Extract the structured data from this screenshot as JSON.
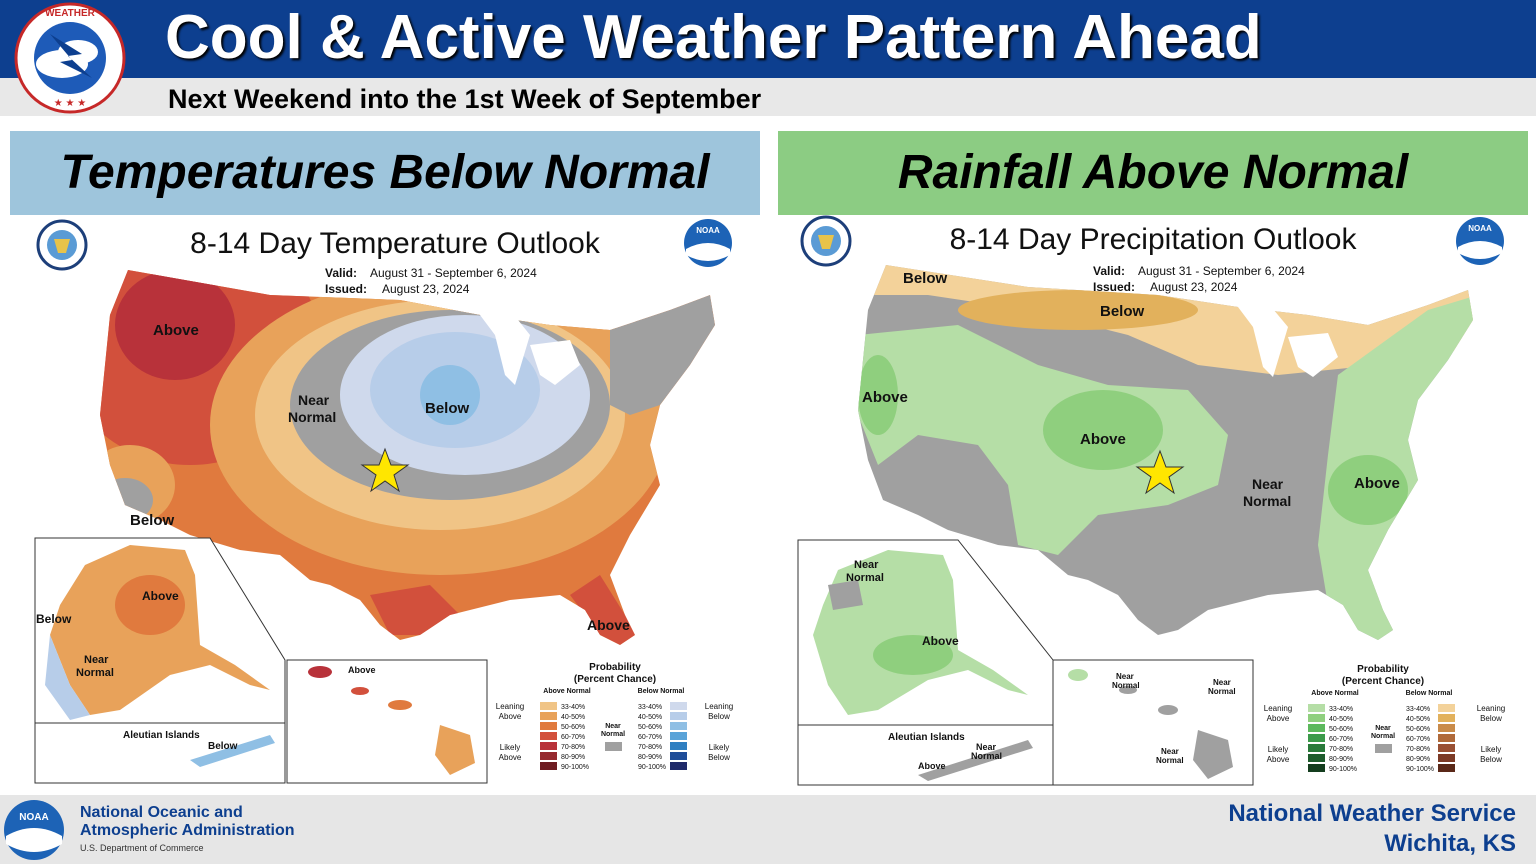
{
  "header": {
    "title": "Cool & Active Weather Pattern Ahead",
    "subtitle": "Next Weekend into the 1st Week of September"
  },
  "panels": {
    "left_heading": "Temperatures Below Normal",
    "right_heading": "Rainfall Above Normal"
  },
  "temp_map": {
    "title": "8-14 Day Temperature Outlook",
    "valid_label": "Valid:",
    "valid": "August 31 - September 6, 2024",
    "issued_label": "Issued:",
    "issued": "August 23, 2024",
    "labels": {
      "above_nw": "Above",
      "near_normal_1": "Near",
      "near_normal_2": "Normal",
      "below_mid": "Below",
      "below_sw": "Below",
      "ak_above": "Above",
      "ak_below": "Below",
      "ak_near_1": "Near",
      "ak_near_2": "Normal",
      "aleutian": "Aleutian Islands",
      "aleutian_below": "Below",
      "hi_above": "Above",
      "fl_above": "Above"
    },
    "legend": {
      "title1": "Probability",
      "title2": "(Percent Chance)",
      "above_normal": "Above Normal",
      "below_normal": "Below Normal",
      "leaning_above_1": "Leaning",
      "leaning_above_2": "Above",
      "likely_above_1": "Likely",
      "likely_above_2": "Above",
      "near_1": "Near",
      "near_2": "Normal",
      "leaning_below_1": "Leaning",
      "leaning_below_2": "Below",
      "likely_below_1": "Likely",
      "likely_below_2": "Below",
      "ranges": [
        "33-40%",
        "40-50%",
        "50-60%",
        "60-70%",
        "70-80%",
        "80-90%",
        "90-100%"
      ],
      "above_colors": [
        "#f0c486",
        "#e8a25a",
        "#e07a3e",
        "#d2503c",
        "#b8323a",
        "#962a2f",
        "#6e1c22"
      ],
      "below_colors": [
        "#cfd9ec",
        "#b7cde9",
        "#8fbfe4",
        "#5aa3d8",
        "#2f7fc1",
        "#1f4d99",
        "#1f2a6a"
      ],
      "near_color": "#a0a0a0"
    }
  },
  "precip_map": {
    "title": "8-14 Day Precipitation Outlook",
    "valid_label": "Valid:",
    "valid": "August 31 - September 6, 2024",
    "issued_label": "Issued:",
    "issued": "August 23, 2024",
    "labels": {
      "below_nw": "Below",
      "below_n": "Below",
      "above_w": "Above",
      "above_c": "Above",
      "near_1": "Near",
      "near_2": "Normal",
      "above_e": "Above",
      "ak_near_1": "Near",
      "ak_near_2": "Normal",
      "ak_above": "Above",
      "aleutian": "Aleutian Islands",
      "aleutian_near_1": "Near",
      "aleutian_near_2": "Normal",
      "aleutian_above": "Above",
      "hi_near_a1": "Near",
      "hi_near_a2": "Normal",
      "hi_near_b1": "Near",
      "hi_near_b2": "Normal",
      "hi_near_c1": "Near",
      "hi_near_c2": "Normal"
    },
    "legend": {
      "title1": "Probability",
      "title2": "(Percent Chance)",
      "above_normal": "Above Normal",
      "below_normal": "Below Normal",
      "leaning_above_1": "Leaning",
      "leaning_above_2": "Above",
      "likely_above_1": "Likely",
      "likely_above_2": "Above",
      "near_1": "Near",
      "near_2": "Normal",
      "leaning_below_1": "Leaning",
      "leaning_below_2": "Below",
      "likely_below_1": "Likely",
      "likely_below_2": "Below",
      "ranges": [
        "33-40%",
        "40-50%",
        "50-60%",
        "60-70%",
        "70-80%",
        "80-90%",
        "90-100%"
      ],
      "above_colors": [
        "#b5dea6",
        "#8fcf7e",
        "#5cb85c",
        "#3c9a4a",
        "#2a7a3a",
        "#1e5c2c",
        "#143d1e"
      ],
      "below_colors": [
        "#f3d29a",
        "#e2b15c",
        "#c98b4a",
        "#b06a3a",
        "#995034",
        "#7c3a26",
        "#5a2818"
      ],
      "near_color": "#a0a0a0"
    }
  },
  "footer": {
    "noaa_line1": "National Oceanic and",
    "noaa_line2": "Atmospheric Administration",
    "noaa_dept": "U.S. Department of Commerce",
    "nws_name": "National Weather Service",
    "nws_city": "Wichita, KS"
  },
  "colors": {
    "header_blue": "#0d3f8f",
    "temp_header": "#9ec5dc",
    "precip_header": "#8ccc83",
    "star": "#ffe600"
  }
}
